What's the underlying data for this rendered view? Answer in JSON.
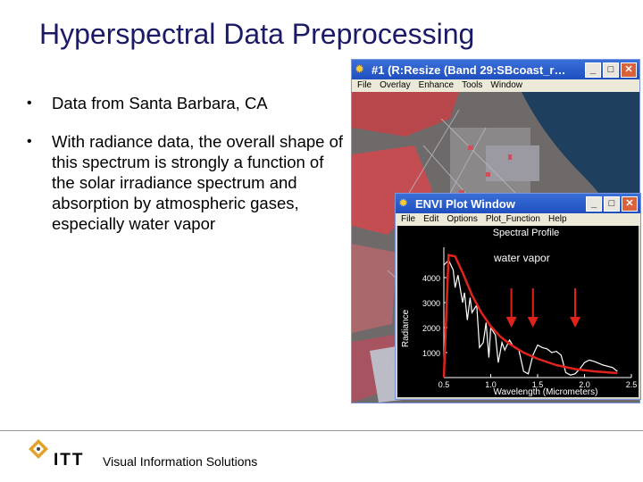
{
  "slide": {
    "title": "Hyperspectral Data Preprocessing",
    "bullets": [
      "Data from Santa Barbara, CA",
      "With radiance data, the overall shape of this spectrum is strongly a function of the solar irradiance spectrum and absorption by atmospheric gases, especially water vapor"
    ]
  },
  "image_window": {
    "title": "#1 (R:Resize (Band 29:SBcoast_r…",
    "menu": [
      "File",
      "Overlay",
      "Enhance",
      "Tools",
      "Window"
    ]
  },
  "plot_window": {
    "title": "ENVI Plot Window",
    "menu": [
      "File",
      "Edit",
      "Options",
      "Plot_Function",
      "Help"
    ],
    "annotation": "water vapor"
  },
  "chart_data": {
    "type": "line",
    "title": "Spectral Profile",
    "xlabel": "Wavelength (Micrometers)",
    "ylabel": "Radiance",
    "xlim": [
      0.5,
      2.5
    ],
    "ylim": [
      0,
      5000
    ],
    "x_ticks": [
      "0.5",
      "1.0",
      "1.5",
      "2.0",
      "2.5"
    ],
    "y_ticks": [
      "1000",
      "2000",
      "3000",
      "4000"
    ],
    "series": [
      {
        "x": [
          0.5,
          0.55,
          0.6,
          0.62,
          0.65,
          0.7,
          0.72,
          0.75,
          0.78,
          0.8,
          0.85,
          0.88,
          0.92,
          0.95,
          0.98,
          1.0,
          1.05,
          1.08,
          1.12,
          1.15,
          1.2,
          1.25,
          1.3,
          1.35,
          1.4,
          1.45,
          1.5,
          1.55,
          1.6,
          1.65,
          1.7,
          1.75,
          1.8,
          1.85,
          1.9,
          1.95,
          2.0,
          2.05,
          2.1,
          2.2,
          2.3,
          2.35
        ],
        "values": [
          4500,
          4700,
          4300,
          3600,
          4100,
          3000,
          3400,
          2300,
          3200,
          2600,
          2900,
          1200,
          1400,
          2200,
          800,
          2000,
          1700,
          600,
          1400,
          1100,
          1500,
          1200,
          1100,
          250,
          150,
          900,
          1300,
          1200,
          1150,
          1000,
          1050,
          900,
          200,
          100,
          150,
          350,
          600,
          700,
          650,
          500,
          400,
          250
        ]
      }
    ],
    "envelope": {
      "x": [
        0.5,
        0.55,
        0.62,
        0.7,
        0.8,
        0.9,
        1.0,
        1.1,
        1.2,
        1.35,
        1.5,
        1.7,
        1.9,
        2.1,
        2.35
      ],
      "values": [
        0,
        4900,
        4850,
        4200,
        3300,
        2600,
        2050,
        1650,
        1350,
        1000,
        750,
        500,
        340,
        250,
        180
      ]
    },
    "arrows_at_x": [
      1.22,
      1.45,
      1.9
    ]
  }
}
